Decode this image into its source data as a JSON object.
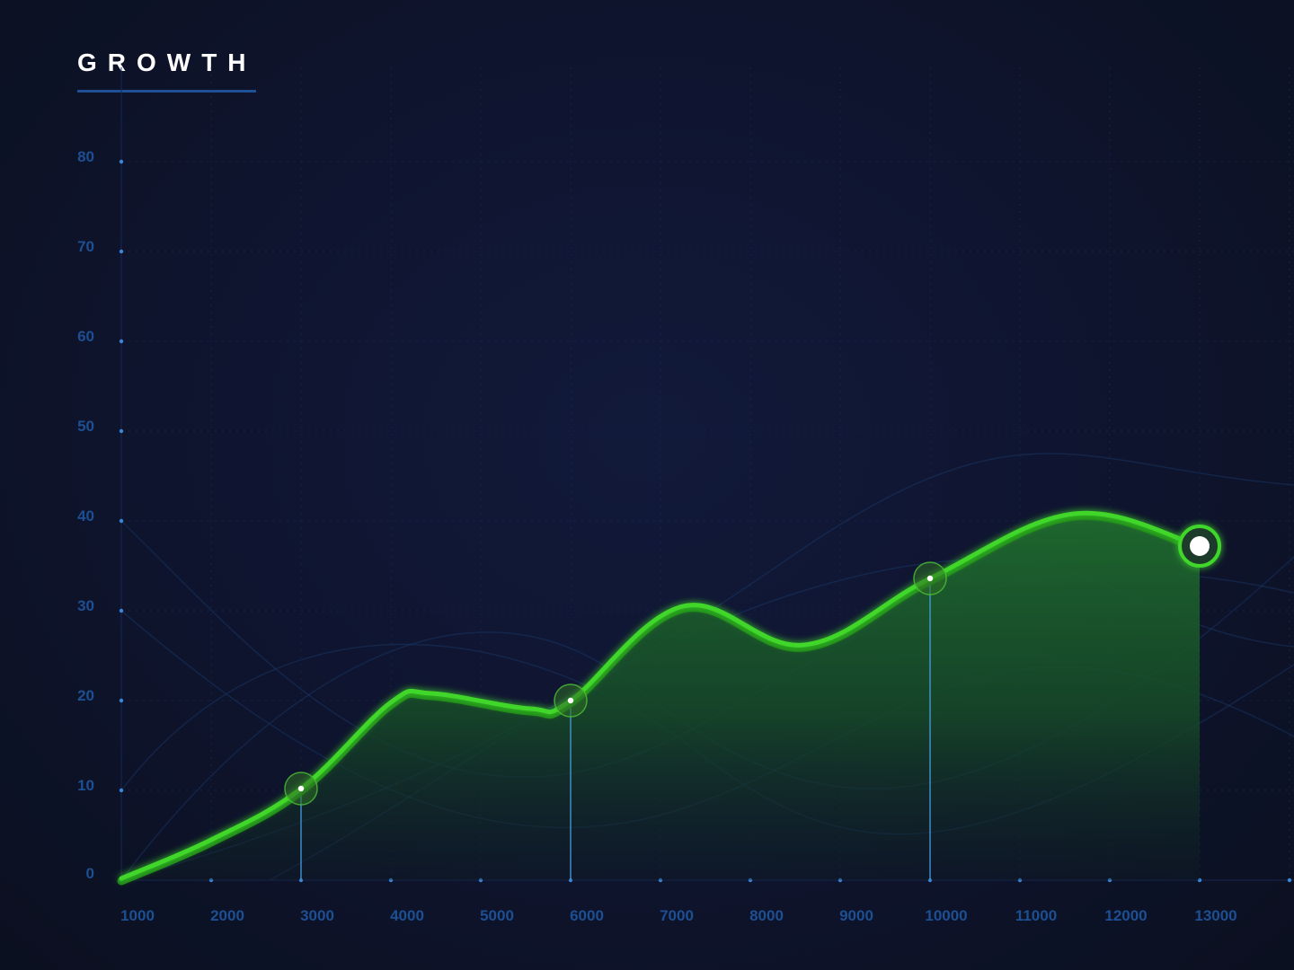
{
  "chart_data": {
    "type": "area",
    "title": "GROWTH",
    "xlabel": "",
    "ylabel": "",
    "xlim": [
      1000,
      13000
    ],
    "ylim": [
      0,
      80
    ],
    "x_ticks": [
      "1000",
      "2000",
      "3000",
      "4000",
      "5000",
      "6000",
      "7000",
      "8000",
      "9000",
      "10000",
      "11000",
      "12000",
      "13000"
    ],
    "y_ticks": [
      "0",
      "10",
      "20",
      "30",
      "40",
      "50",
      "60",
      "70",
      "80"
    ],
    "grid": true,
    "legend": "none",
    "series": [
      {
        "x": [
          1000,
          2000,
          3000,
          4000,
          4450,
          5550,
          6000,
          7250,
          8600,
          10000,
          11600,
          13000
        ],
        "values": [
          0.2,
          4.5,
          10.2,
          19.8,
          20.8,
          19.1,
          20.0,
          30.5,
          26.2,
          33.6,
          40.8,
          37.2
        ]
      }
    ],
    "highlighted_points": [
      {
        "x": 3000,
        "y": 10.2
      },
      {
        "x": 6000,
        "y": 20.0
      },
      {
        "x": 10000,
        "y": 33.6
      }
    ],
    "endpoint": {
      "x": 13000,
      "y": 37.2
    }
  },
  "colors": {
    "line": "#3fd72a",
    "line_glow": "#2bb31a",
    "area_top": "#1f6b2e",
    "grid": "#1a2a55",
    "axis_label": "#1d4f92",
    "drop_line": "#4aa6ee",
    "title": "#ffffff",
    "title_underline": "#1f4f95"
  }
}
